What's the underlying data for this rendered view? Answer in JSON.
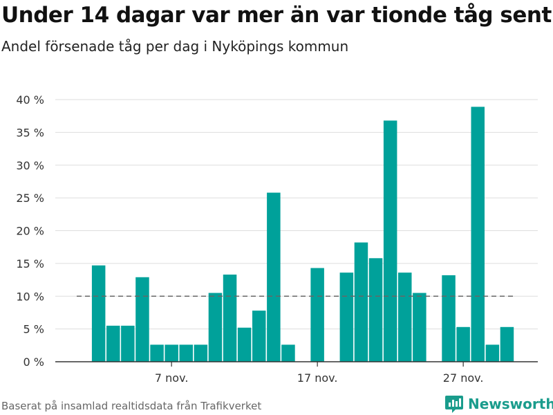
{
  "title": "Under 14 dagar var mer än var tionde tåg sent",
  "subtitle": "Andel försenade tåg per dag i Nyköpings kommun",
  "source": "Baserat på insamlad realtidsdata från Trafikverket",
  "brand": "Newsworthy",
  "colors": {
    "bar": "#00a19a",
    "reference": "#666666",
    "grid": "#dddddd",
    "brand": "#1a9c8c"
  },
  "chart_data": {
    "type": "bar",
    "x_start_day": 1,
    "x_tick_labels": [
      {
        "day": 7,
        "label": "7 nov."
      },
      {
        "day": 17,
        "label": "17 nov."
      },
      {
        "day": 27,
        "label": "27 nov."
      }
    ],
    "days": [
      2,
      3,
      4,
      5,
      6,
      7,
      8,
      9,
      10,
      11,
      12,
      13,
      14,
      15,
      16,
      17,
      18,
      19,
      20,
      21,
      22,
      23,
      24,
      25,
      26,
      27,
      28,
      29,
      30
    ],
    "values": [
      14.7,
      5.5,
      5.5,
      12.9,
      2.6,
      2.6,
      2.6,
      2.6,
      10.5,
      13.3,
      5.2,
      7.8,
      25.8,
      2.6,
      0,
      14.3,
      0,
      13.6,
      18.2,
      15.8,
      36.8,
      13.6,
      10.5,
      0,
      13.2,
      5.3,
      38.9,
      2.6,
      5.3
    ],
    "reference_line": 10,
    "y_ticks": [
      0,
      5,
      10,
      15,
      20,
      25,
      30,
      35,
      40
    ],
    "y_tick_labels": [
      "0 %",
      "5 %",
      "10 %",
      "15 %",
      "20 %",
      "25 %",
      "30 %",
      "35 %",
      "40 %"
    ],
    "ylim": [
      0,
      40
    ],
    "grid": true
  }
}
